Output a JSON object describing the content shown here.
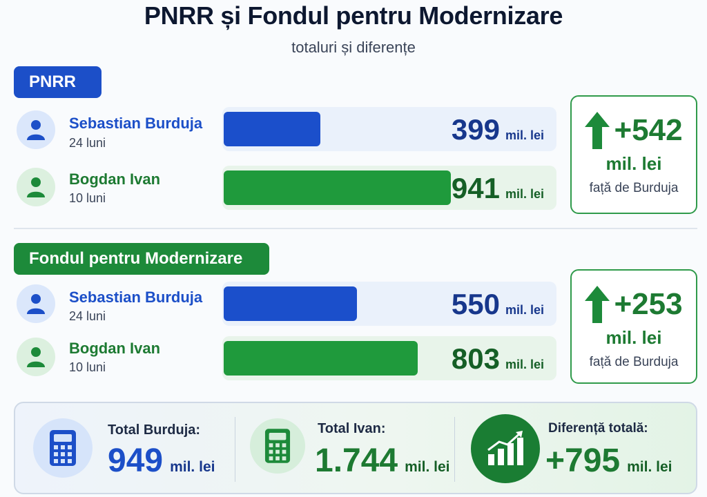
{
  "title": "PNRR și Fondul pentru Modernizare",
  "subtitle": "totaluri și diferențe",
  "sections": [
    {
      "label": "PNRR",
      "rows": [
        {
          "name": "Sebastian Burduja",
          "duration": "24 luni",
          "value": "399",
          "unit": "mil. lei"
        },
        {
          "name": "Bogdan Ivan",
          "duration": "10 luni",
          "value": "941",
          "unit": "mil. lei"
        }
      ],
      "diff": {
        "value": "+542",
        "unit": "mil. lei",
        "note": "față de Burduja"
      }
    },
    {
      "label": "Fondul pentru Modernizare",
      "rows": [
        {
          "name": "Sebastian Burduja",
          "duration": "24 luni",
          "value": "550",
          "unit": "mil. lei"
        },
        {
          "name": "Bogdan Ivan",
          "duration": "10 luni",
          "value": "803",
          "unit": "mil. lei"
        }
      ],
      "diff": {
        "value": "+253",
        "unit": "mil. lei",
        "note": "față de Burduja"
      }
    }
  ],
  "summary": {
    "burduja": {
      "label": "Total Burduja:",
      "value": "949",
      "unit": "mil. lei"
    },
    "ivan": {
      "label": "Total Ivan:",
      "value": "1.744",
      "unit": "mil. lei"
    },
    "difference": {
      "label": "Diferență totală:",
      "value": "+795",
      "unit": "mil. lei"
    }
  },
  "colors": {
    "burduja": "#1b4fcb",
    "ivan": "#1f9a3c",
    "diff": "#1d7a32"
  },
  "icons": {
    "person": "person-icon",
    "up_arrow": "arrow-up-icon",
    "calculator": "calculator-icon",
    "growth": "chart-growth-icon"
  },
  "chart_data": {
    "type": "bar",
    "orientation": "horizontal",
    "title": "PNRR și Fondul pentru Modernizare",
    "subtitle": "totaluri și diferențe",
    "groups": [
      {
        "name": "PNRR",
        "categories": [
          "Sebastian Burduja",
          "Bogdan Ivan"
        ],
        "values": [
          399,
          941
        ]
      },
      {
        "name": "Fondul pentru Modernizare",
        "categories": [
          "Sebastian Burduja",
          "Bogdan Ivan"
        ],
        "values": [
          550,
          803
        ]
      }
    ],
    "unit": "mil. lei",
    "xlim": [
      0,
      1000
    ]
  }
}
